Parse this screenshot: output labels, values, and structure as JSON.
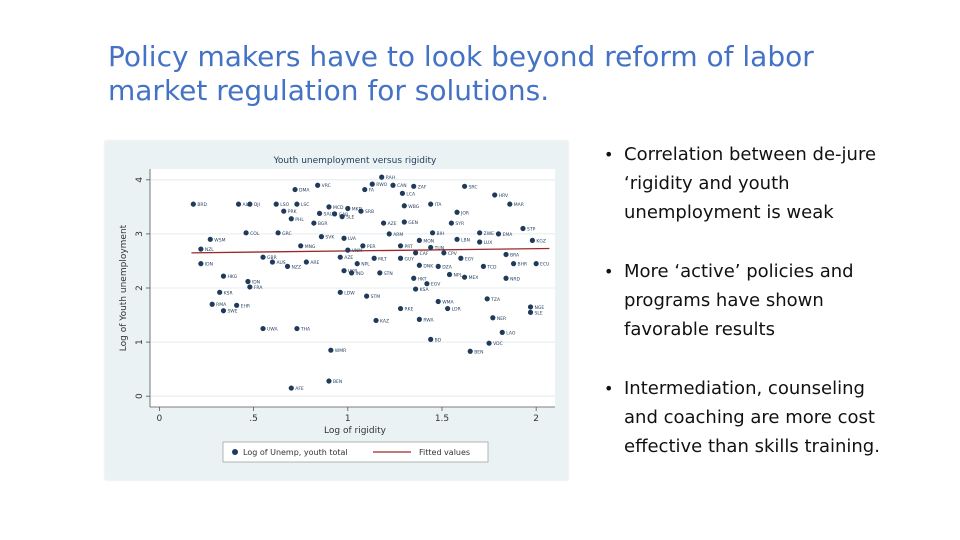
{
  "slide": {
    "title_line1": "Policy makers have to look beyond reform of labor",
    "title_line2": "market regulation for solutions.",
    "title_color": "#4472c4"
  },
  "bullets": [
    {
      "text": "Correlation between de-jure ‘rigidity and youth unemployment is weak"
    },
    {
      "text": "More ‘active’ policies and programs have shown favorable results"
    },
    {
      "text": "Intermediation, counseling and coaching are more cost effective than skills training."
    }
  ],
  "chart_data": {
    "type": "scatter",
    "title": "Youth unemployment versus rigidity",
    "xlabel": "Log of rigidity",
    "ylabel": "Log of Youth unemployment",
    "xlim": [
      -0.05,
      2.1
    ],
    "ylim": [
      -0.2,
      4.2
    ],
    "x_ticks": [
      "0",
      ".5",
      "1",
      "1.5",
      "2"
    ],
    "x_tick_values": [
      0,
      0.5,
      1,
      1.5,
      2
    ],
    "y_ticks": [
      "0",
      "1",
      "2",
      "3",
      "4"
    ],
    "y_tick_values": [
      0,
      1,
      2,
      3,
      4
    ],
    "grid": "horizontal",
    "legend_position": "bottom",
    "legend": [
      {
        "label": "Log of Unemp, youth total",
        "marker": "circle"
      },
      {
        "label": "Fitted values",
        "marker": "line"
      }
    ],
    "colors": {
      "points": "#1f3a5a",
      "fit": "#9a2a2a",
      "background": "#eaf2f3"
    },
    "fitted_line": {
      "x": [
        0.17,
        2.07
      ],
      "y": [
        2.65,
        2.73
      ]
    },
    "points": [
      {
        "x": 1.18,
        "y": 4.05,
        "label": "RAH"
      },
      {
        "x": 0.84,
        "y": 3.9,
        "label": "VRC"
      },
      {
        "x": 1.13,
        "y": 3.92,
        "label": "RWO"
      },
      {
        "x": 1.24,
        "y": 3.9,
        "label": "CAN"
      },
      {
        "x": 1.35,
        "y": 3.88,
        "label": "ZAF"
      },
      {
        "x": 1.62,
        "y": 3.88,
        "label": "SRC"
      },
      {
        "x": 0.72,
        "y": 3.82,
        "label": "DMA"
      },
      {
        "x": 1.09,
        "y": 3.82,
        "label": "FA"
      },
      {
        "x": 1.29,
        "y": 3.75,
        "label": "LCA"
      },
      {
        "x": 1.78,
        "y": 3.72,
        "label": "HRV"
      },
      {
        "x": 1.3,
        "y": 3.52,
        "label": "WBG"
      },
      {
        "x": 0.73,
        "y": 3.55,
        "label": "LSC"
      },
      {
        "x": 0.18,
        "y": 3.55,
        "label": "BRD"
      },
      {
        "x": 0.42,
        "y": 3.55,
        "label": "ALB"
      },
      {
        "x": 0.48,
        "y": 3.55,
        "label": "DJI"
      },
      {
        "x": 0.62,
        "y": 3.55,
        "label": "LSO"
      },
      {
        "x": 1.44,
        "y": 3.55,
        "label": "ITA"
      },
      {
        "x": 1.86,
        "y": 3.55,
        "label": "MAR"
      },
      {
        "x": 0.9,
        "y": 3.5,
        "label": "MCD"
      },
      {
        "x": 1.0,
        "y": 3.47,
        "label": "MKD"
      },
      {
        "x": 1.07,
        "y": 3.42,
        "label": "SRB"
      },
      {
        "x": 0.66,
        "y": 3.42,
        "label": "PRK"
      },
      {
        "x": 0.85,
        "y": 3.38,
        "label": "SAU"
      },
      {
        "x": 1.58,
        "y": 3.4,
        "label": "JOR"
      },
      {
        "x": 0.93,
        "y": 3.37,
        "label": "GAB"
      },
      {
        "x": 0.97,
        "y": 3.32,
        "label": "SLE"
      },
      {
        "x": 1.3,
        "y": 3.22,
        "label": "GEN"
      },
      {
        "x": 0.7,
        "y": 3.28,
        "label": "PHL"
      },
      {
        "x": 0.82,
        "y": 3.2,
        "label": "BGR"
      },
      {
        "x": 1.19,
        "y": 3.2,
        "label": "AZE"
      },
      {
        "x": 1.55,
        "y": 3.2,
        "label": "SYR"
      },
      {
        "x": 1.93,
        "y": 3.1,
        "label": "STP"
      },
      {
        "x": 0.46,
        "y": 3.02,
        "label": "COL"
      },
      {
        "x": 0.63,
        "y": 3.02,
        "label": "GRC"
      },
      {
        "x": 1.22,
        "y": 3.0,
        "label": "ARM"
      },
      {
        "x": 1.45,
        "y": 3.02,
        "label": "BIH"
      },
      {
        "x": 1.7,
        "y": 3.02,
        "label": "ZWE"
      },
      {
        "x": 1.8,
        "y": 3.0,
        "label": "EMA"
      },
      {
        "x": 0.86,
        "y": 2.95,
        "label": "SVK"
      },
      {
        "x": 0.98,
        "y": 2.92,
        "label": "LVA"
      },
      {
        "x": 1.38,
        "y": 2.88,
        "label": "MON"
      },
      {
        "x": 1.58,
        "y": 2.9,
        "label": "LBN"
      },
      {
        "x": 1.7,
        "y": 2.85,
        "label": "LUX"
      },
      {
        "x": 1.98,
        "y": 2.88,
        "label": "KGZ"
      },
      {
        "x": 0.27,
        "y": 2.9,
        "label": "WSM"
      },
      {
        "x": 0.75,
        "y": 2.78,
        "label": "MNG"
      },
      {
        "x": 1.08,
        "y": 2.78,
        "label": "PER"
      },
      {
        "x": 1.28,
        "y": 2.78,
        "label": "PRT"
      },
      {
        "x": 1.44,
        "y": 2.75,
        "label": "TUN"
      },
      {
        "x": 0.22,
        "y": 2.72,
        "label": "NZL"
      },
      {
        "x": 1.0,
        "y": 2.7,
        "label": "VNM"
      },
      {
        "x": 1.36,
        "y": 2.65,
        "label": "CAF"
      },
      {
        "x": 1.51,
        "y": 2.65,
        "label": "CPV"
      },
      {
        "x": 1.84,
        "y": 2.62,
        "label": "BRA"
      },
      {
        "x": 0.55,
        "y": 2.57,
        "label": "GBR"
      },
      {
        "x": 0.96,
        "y": 2.57,
        "label": "AZE"
      },
      {
        "x": 1.14,
        "y": 2.55,
        "label": "MLT"
      },
      {
        "x": 1.28,
        "y": 2.55,
        "label": "GUY"
      },
      {
        "x": 1.6,
        "y": 2.55,
        "label": "EGY"
      },
      {
        "x": 0.6,
        "y": 2.48,
        "label": "AUS"
      },
      {
        "x": 0.78,
        "y": 2.48,
        "label": "ARE"
      },
      {
        "x": 1.05,
        "y": 2.45,
        "label": "NPL"
      },
      {
        "x": 1.88,
        "y": 2.45,
        "label": "BHR"
      },
      {
        "x": 2.0,
        "y": 2.45,
        "label": "ECU"
      },
      {
        "x": 0.22,
        "y": 2.45,
        "label": "IDN"
      },
      {
        "x": 0.68,
        "y": 2.4,
        "label": "NZZ"
      },
      {
        "x": 1.38,
        "y": 2.42,
        "label": "DNK"
      },
      {
        "x": 1.48,
        "y": 2.4,
        "label": "DZA"
      },
      {
        "x": 1.72,
        "y": 2.4,
        "label": "TCD"
      },
      {
        "x": 0.98,
        "y": 2.32,
        "label": "UKR"
      },
      {
        "x": 1.02,
        "y": 2.28,
        "label": "IND"
      },
      {
        "x": 1.17,
        "y": 2.28,
        "label": "STN"
      },
      {
        "x": 1.54,
        "y": 2.25,
        "label": "NPL"
      },
      {
        "x": 0.34,
        "y": 2.22,
        "label": "HKG"
      },
      {
        "x": 1.62,
        "y": 2.2,
        "label": "MEX"
      },
      {
        "x": 1.84,
        "y": 2.18,
        "label": "NRD"
      },
      {
        "x": 0.47,
        "y": 2.12,
        "label": "IDN"
      },
      {
        "x": 1.35,
        "y": 2.18,
        "label": "HKT"
      },
      {
        "x": 1.42,
        "y": 2.08,
        "label": "EGV"
      },
      {
        "x": 0.48,
        "y": 2.02,
        "label": "FRA"
      },
      {
        "x": 1.36,
        "y": 1.98,
        "label": "KSA"
      },
      {
        "x": 0.32,
        "y": 1.92,
        "label": "KSR"
      },
      {
        "x": 0.96,
        "y": 1.92,
        "label": "LDW"
      },
      {
        "x": 1.1,
        "y": 1.85,
        "label": "STM"
      },
      {
        "x": 1.74,
        "y": 1.8,
        "label": "TZA"
      },
      {
        "x": 0.28,
        "y": 1.7,
        "label": "RMA"
      },
      {
        "x": 0.41,
        "y": 1.68,
        "label": "EHR"
      },
      {
        "x": 1.48,
        "y": 1.75,
        "label": "WMA"
      },
      {
        "x": 1.28,
        "y": 1.62,
        "label": "RKE"
      },
      {
        "x": 1.53,
        "y": 1.62,
        "label": "LDR"
      },
      {
        "x": 0.34,
        "y": 1.58,
        "label": "SWE"
      },
      {
        "x": 1.97,
        "y": 1.65,
        "label": "NGE"
      },
      {
        "x": 1.97,
        "y": 1.55,
        "label": "SLE"
      },
      {
        "x": 1.77,
        "y": 1.45,
        "label": "NER"
      },
      {
        "x": 1.38,
        "y": 1.42,
        "label": "RWA"
      },
      {
        "x": 1.15,
        "y": 1.4,
        "label": "KAZ"
      },
      {
        "x": 0.55,
        "y": 1.25,
        "label": "UWA"
      },
      {
        "x": 0.73,
        "y": 1.25,
        "label": "THA"
      },
      {
        "x": 1.82,
        "y": 1.18,
        "label": "LAO"
      },
      {
        "x": 1.44,
        "y": 1.05,
        "label": "BD"
      },
      {
        "x": 1.75,
        "y": 0.98,
        "label": "VDC"
      },
      {
        "x": 0.91,
        "y": 0.85,
        "label": "WMR"
      },
      {
        "x": 1.65,
        "y": 0.83,
        "label": "BEN"
      },
      {
        "x": 0.9,
        "y": 0.28,
        "label": "BEN"
      },
      {
        "x": 0.7,
        "y": 0.15,
        "label": "AFE"
      }
    ]
  }
}
